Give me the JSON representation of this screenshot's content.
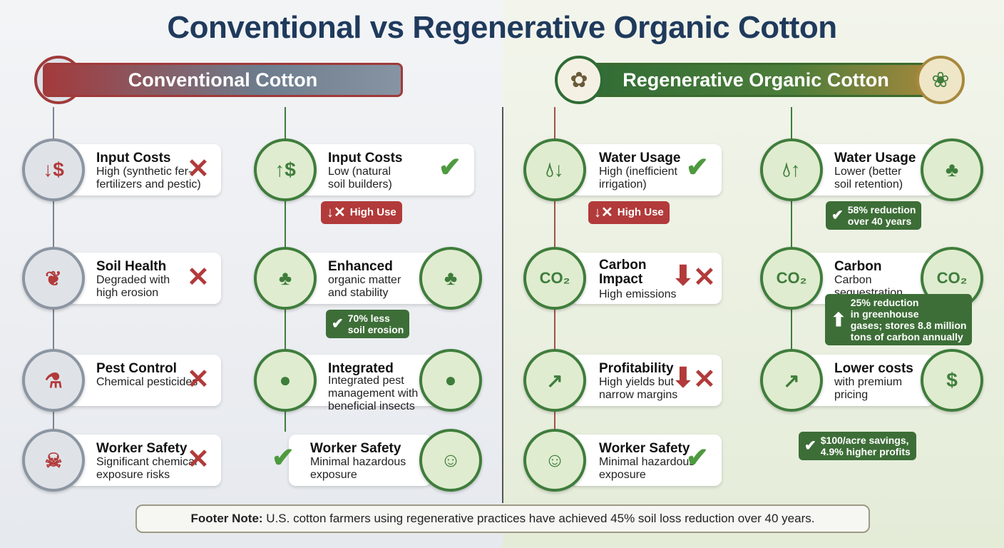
{
  "title": "Conventional vs Regenerative Organic Cotton",
  "headers": {
    "conventional": "Conventional Cotton",
    "regenerative": "Regenerative Organic Cotton"
  },
  "colors": {
    "title": "#1f3a5c",
    "red": "#b23a3a",
    "green": "#3f7d3c",
    "gold": "#a7883d"
  },
  "columns": [
    {
      "side": "conventional",
      "cards": [
        {
          "title": "Input Costs",
          "desc": "High (synthetic fer-\nfertilizers and pestic)",
          "mark": "cross",
          "icon": "dollar-down-icon"
        },
        {
          "title": "Soil Health",
          "desc": "Degraded with\nhigh erosion",
          "mark": "cross",
          "icon": "cracked-soil-icon"
        },
        {
          "title": "Pest Control",
          "desc": "Chemical pesticides",
          "mark": "cross",
          "icon": "spray-bottle-icon"
        },
        {
          "title": "Worker Safety",
          "desc": "Significant chemical\nexposure risks",
          "mark": "cross",
          "icon": "hazmat-worker-icon"
        }
      ]
    },
    {
      "side": "conventional",
      "cards": [
        {
          "title": "Input Costs",
          "desc": "Low (natural\nsoil builders)",
          "mark": "check",
          "icon": "dollar-up-icon",
          "badge": {
            "text": "High Use",
            "kind": "red"
          }
        },
        {
          "title": "Enhanced",
          "desc": "organic matter\nand stability",
          "mark": "",
          "icon": "sprout-roots-icon",
          "icon2": "sprout-soil-icon",
          "badge": {
            "text": "70% less\nsoil erosion",
            "kind": "green"
          }
        },
        {
          "title": "Integrated",
          "desc": "Integrated pest\nmanagement with\nbeneficial insects",
          "mark": "",
          "icon": "ladybug-icon",
          "icon2": "ladybug-leaf-icon"
        },
        {
          "title": "Worker Safety",
          "desc": "Minimal hazardous\nexposure",
          "mark": "check-left",
          "icon2": "farmer-icon"
        }
      ]
    },
    {
      "side": "regenerative",
      "cards": [
        {
          "title": "Water Usage",
          "desc": "High (inefficient\nirrigation)",
          "mark": "check",
          "icon": "water-drop-down-icon",
          "badge": {
            "text": "High Use",
            "kind": "red"
          }
        },
        {
          "title": "Carbon\nImpact",
          "desc": "High emissions",
          "mark": "down-cross",
          "icon": "co2-cloud-icon"
        },
        {
          "title": "Profitability",
          "desc": "High yields but\nnarrow margins",
          "mark": "down-cross",
          "icon": "chart-coins-icon"
        },
        {
          "title": "Worker Safety",
          "desc": "Minimal hazardous\nexposure",
          "mark": "check",
          "icon": "farmer-icon"
        }
      ]
    },
    {
      "side": "regenerative",
      "cards": [
        {
          "title": "Water Usage",
          "desc": "Lower (better\nsoil retention)",
          "mark": "",
          "icon": "water-drop-up-icon",
          "icon2": "sprout-soil-icon",
          "badge": {
            "text": "58% reduction\nover 40 years",
            "kind": "green"
          }
        },
        {
          "title": "Carbon",
          "desc": "Carbon\nsequestration",
          "mark": "",
          "icon": "co2-sequestration-icon",
          "icon2": "co2-sequestration-icon",
          "badge": {
            "text": "25% reduction\nin greenhouse\ngases; stores 8.8 million\ntons of carbon annually",
            "kind": "green-up"
          }
        },
        {
          "title": "Lower costs",
          "desc": "with premium\npricing",
          "mark": "",
          "icon": "growth-chart-icon",
          "icon2": "money-bag-icon",
          "badge": {
            "text": "$100/acre savings,\n4.9% higher profits",
            "kind": "green"
          }
        }
      ]
    }
  ],
  "footer": {
    "label": "Footer Note:",
    "text": " U.S. cotton farmers using regenerative practices have achieved 45% soil loss reduction over 40 years."
  }
}
